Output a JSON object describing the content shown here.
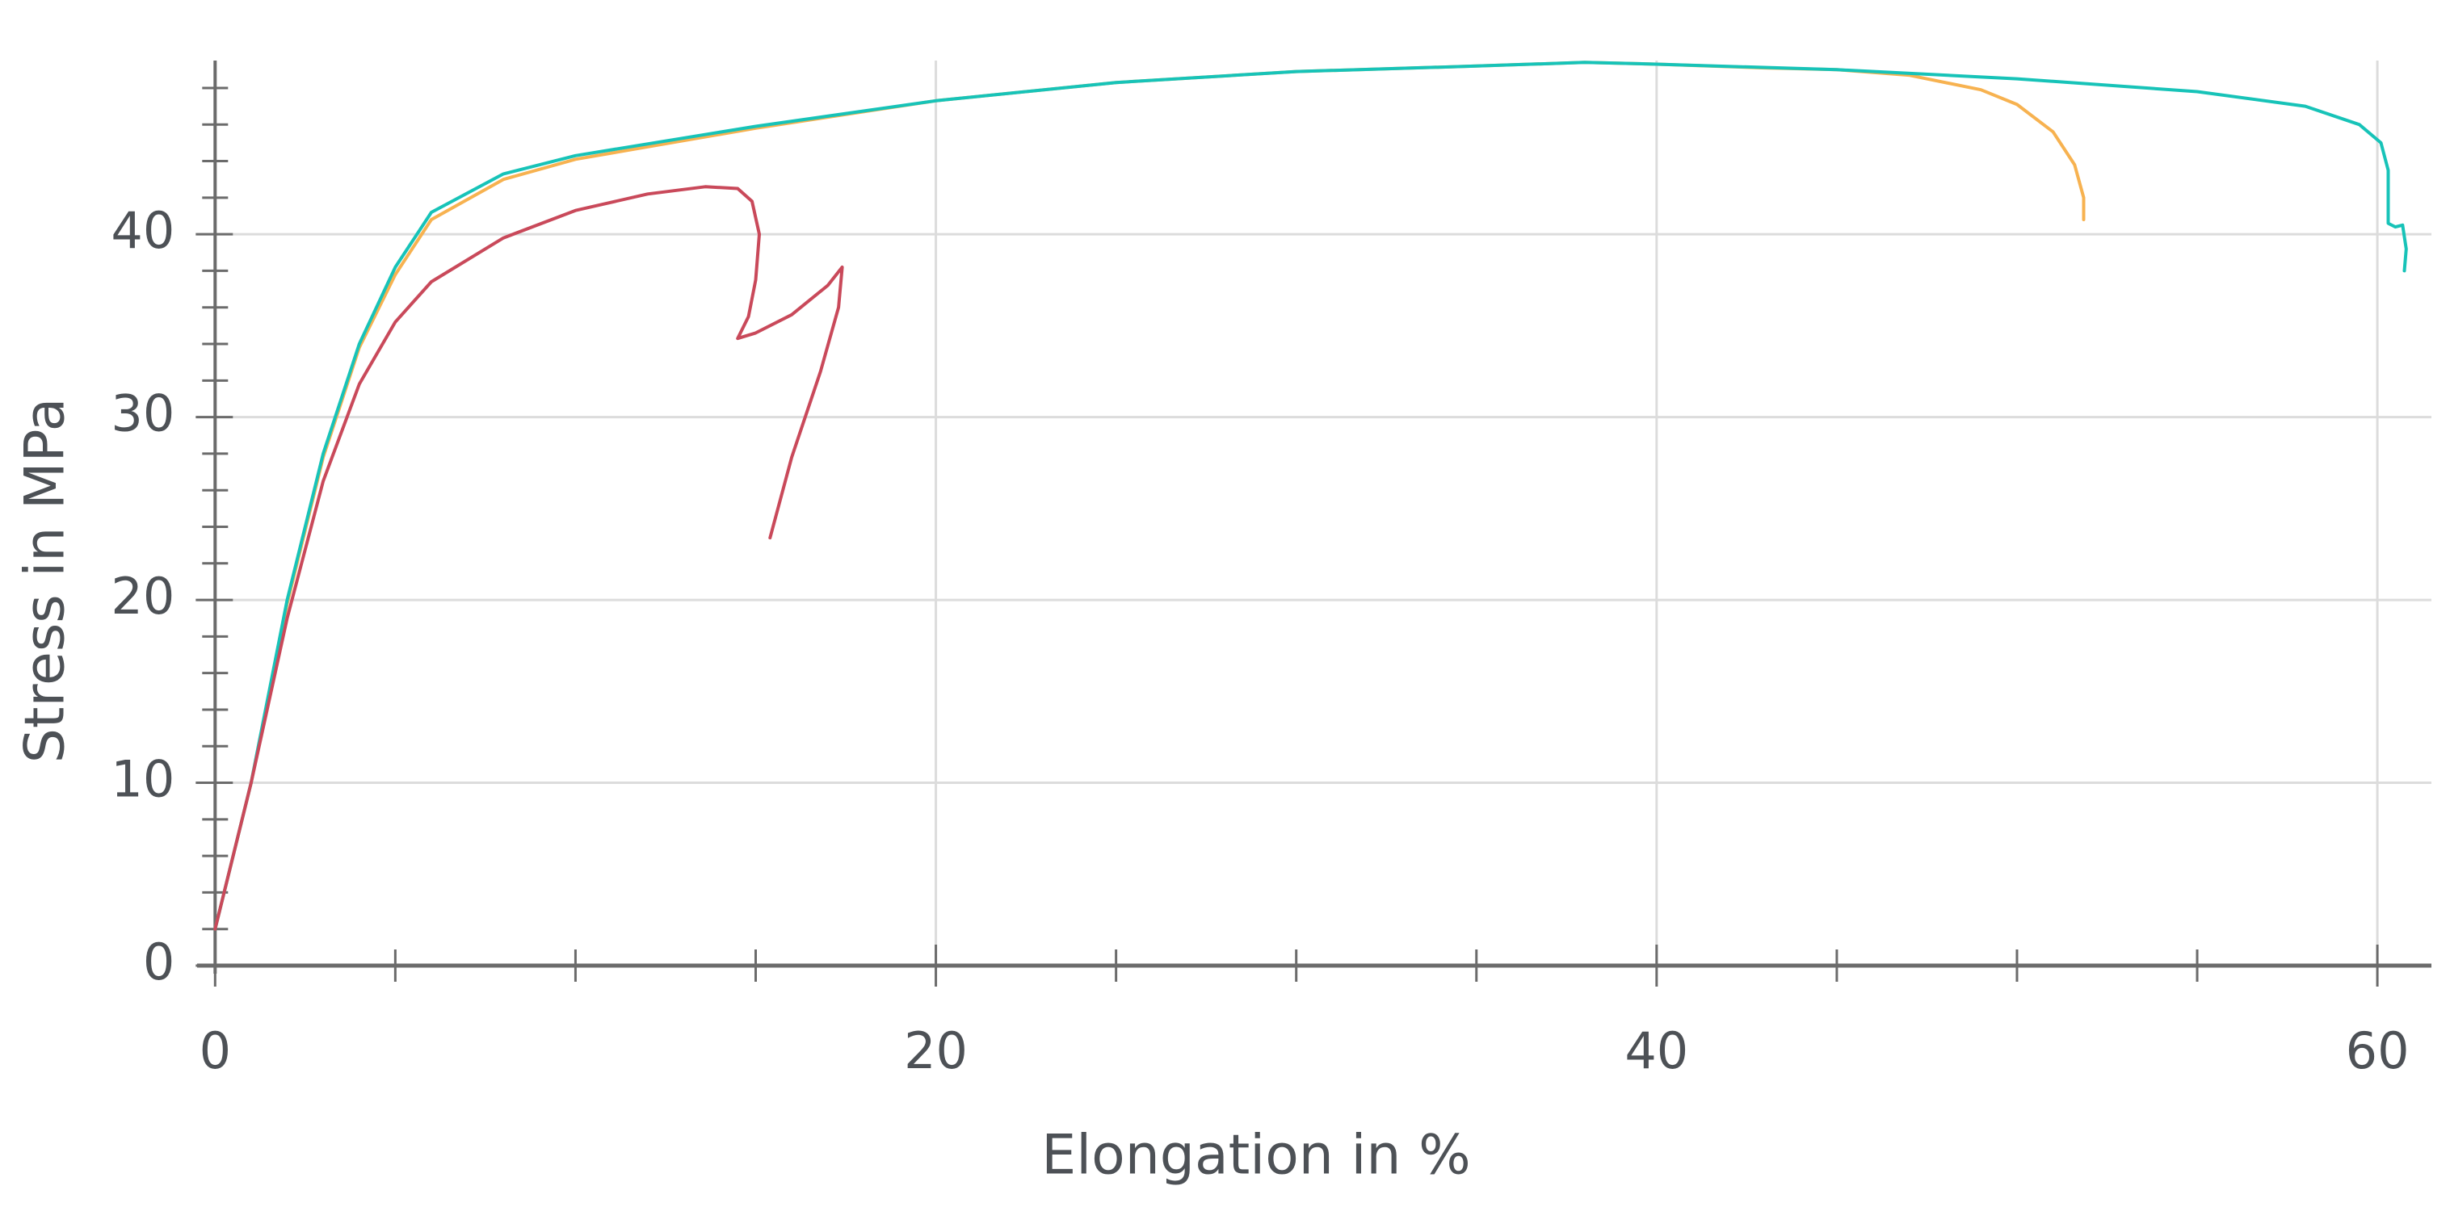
{
  "chart_data": {
    "type": "line",
    "x_label": "Elongation in %",
    "y_label": "Stress in MPa",
    "xlim": [
      -0.5,
      61.5
    ],
    "ylim": [
      0,
      49.5
    ],
    "xticks": [
      0,
      20,
      40,
      60
    ],
    "yticks": [
      0,
      10,
      20,
      30,
      40
    ],
    "xminorticks": [
      5,
      10,
      15,
      25,
      30,
      35,
      45,
      50,
      55
    ],
    "yminorticks": [
      2,
      4,
      6,
      8,
      12,
      14,
      16,
      18,
      22,
      24,
      26,
      28,
      32,
      34,
      36,
      38,
      42,
      44,
      46,
      48
    ],
    "grid": true,
    "series": [
      {
        "color": "#f7b250",
        "x": [
          0,
          1,
          2,
          3,
          4,
          5,
          6,
          8,
          10,
          15,
          20,
          25,
          30,
          35,
          38,
          40,
          43,
          45,
          47,
          49,
          50,
          51,
          51.6,
          51.85,
          51.85
        ],
        "values": [
          2,
          10,
          19.8,
          27.8,
          33.8,
          37.8,
          40.8,
          43,
          44.1,
          45.8,
          47.3,
          48.3,
          48.9,
          49.2,
          49.4,
          49.3,
          49.1,
          49,
          48.7,
          47.9,
          47.1,
          45.6,
          43.8,
          42,
          40.8
        ]
      },
      {
        "color": "#17c3b8",
        "x": [
          0,
          1,
          2,
          3,
          4,
          5,
          6,
          8,
          10,
          15,
          20,
          25,
          30,
          35,
          38,
          40,
          45,
          50,
          55,
          58,
          59.5,
          60.1,
          60.3,
          60.3,
          60.5,
          60.7,
          60.8,
          60.75
        ],
        "values": [
          2,
          10,
          20,
          28,
          34,
          38.2,
          41.2,
          43.3,
          44.3,
          45.9,
          47.3,
          48.3,
          48.9,
          49.2,
          49.4,
          49.3,
          49,
          48.5,
          47.8,
          47,
          46,
          45,
          43.5,
          40.6,
          40.4,
          40.5,
          39.2,
          38
        ]
      },
      {
        "color": "#c9495a",
        "x": [
          0,
          1,
          2,
          3,
          4,
          5,
          6,
          8,
          10,
          12,
          13.6,
          14.5,
          14.9,
          15.1,
          15,
          14.8,
          14.5,
          15,
          16,
          17,
          17.4,
          17.3,
          16.8,
          16,
          15.4
        ],
        "values": [
          2,
          10,
          19,
          26.5,
          31.8,
          35.2,
          37.4,
          39.8,
          41.3,
          42.2,
          42.6,
          42.5,
          41.8,
          40,
          37.5,
          35.5,
          34.3,
          34.6,
          35.6,
          37.2,
          38.2,
          36,
          32.5,
          27.8,
          23.4
        ]
      }
    ]
  }
}
